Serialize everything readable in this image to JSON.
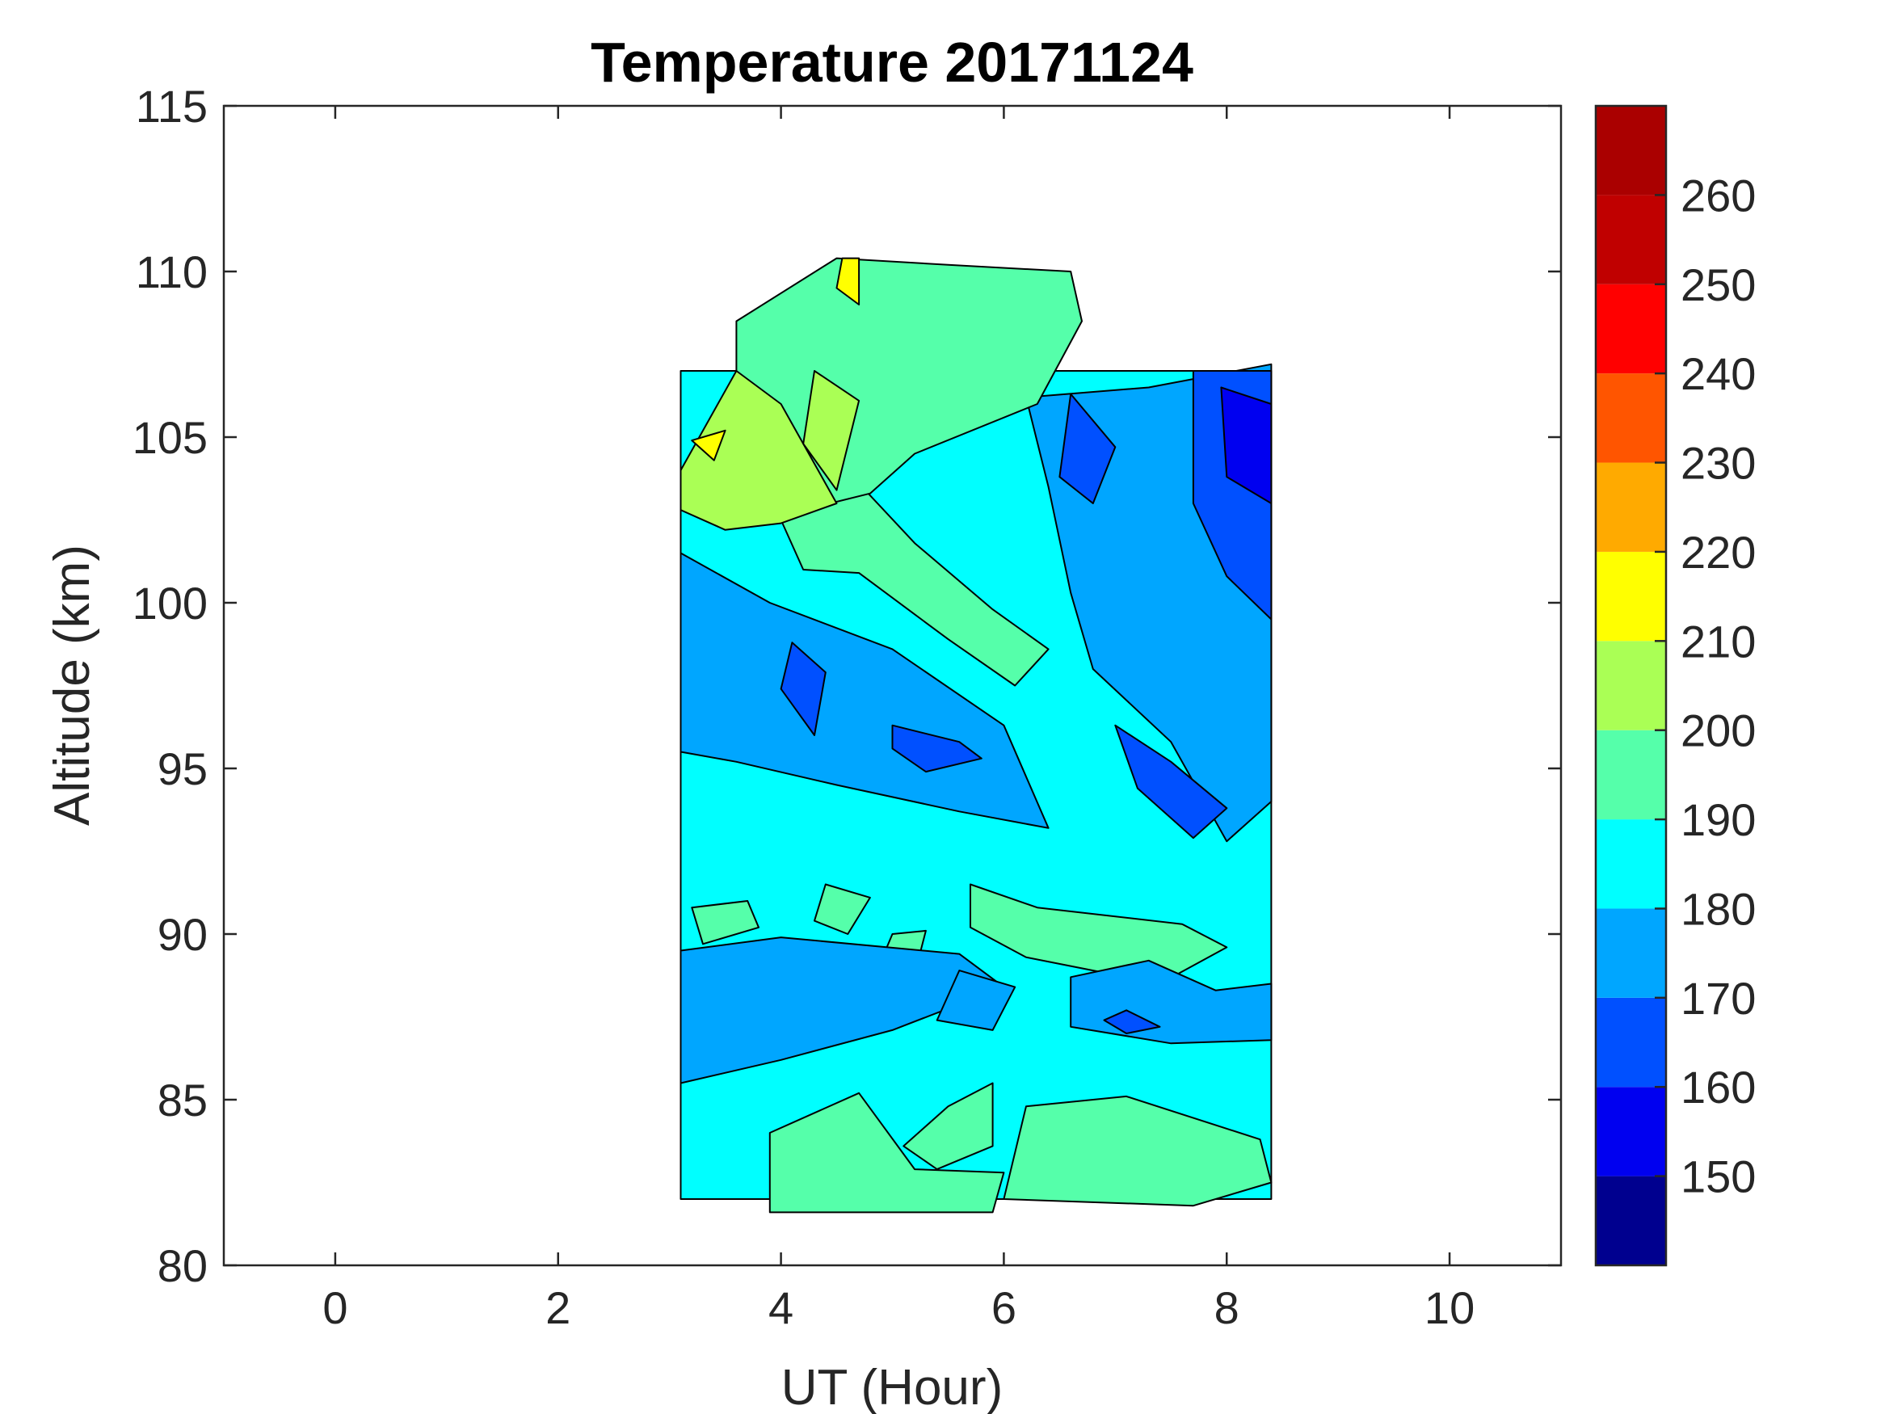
{
  "chart_data": {
    "type": "heatmap",
    "title": "Temperature 20171124",
    "xlabel": "UT (Hour)",
    "ylabel": "Altitude (km)",
    "xlim": [
      -1,
      11
    ],
    "ylim": [
      80,
      115
    ],
    "xticks": [
      0,
      2,
      4,
      6,
      8,
      10
    ],
    "yticks": [
      80,
      85,
      90,
      95,
      100,
      105,
      110,
      115
    ],
    "grid": false,
    "colorbar": {
      "range": [
        140,
        270
      ],
      "levels": [
        140,
        150,
        160,
        170,
        180,
        190,
        200,
        210,
        220,
        230,
        240,
        250,
        260,
        270
      ],
      "colors": [
        "#00008f",
        "#0000f0",
        "#0050ff",
        "#00a6ff",
        "#00ffff",
        "#55ffaa",
        "#aaff55",
        "#ffff00",
        "#ffaa00",
        "#ff5500",
        "#ff0000",
        "#c00000",
        "#aa0000"
      ],
      "ticks": [
        150,
        160,
        170,
        180,
        190,
        200,
        210,
        220,
        230,
        240,
        250,
        260
      ]
    },
    "data_coverage": {
      "x": [
        3.1,
        8.4
      ],
      "y": [
        80.5,
        110.5
      ]
    },
    "regions": [
      {
        "value": 185,
        "polygon": [
          [
            3.1,
            82
          ],
          [
            8.4,
            82
          ],
          [
            8.4,
            107
          ],
          [
            3.1,
            107
          ]
        ]
      },
      {
        "value": 195,
        "polygon": [
          [
            3.9,
            81.6
          ],
          [
            5.9,
            81.6
          ],
          [
            6.0,
            82.8
          ],
          [
            5.2,
            82.9
          ],
          [
            4.7,
            85.2
          ],
          [
            3.9,
            84.0
          ]
        ]
      },
      {
        "value": 195,
        "polygon": [
          [
            6.0,
            82.0
          ],
          [
            7.7,
            81.8
          ],
          [
            8.4,
            82.5
          ],
          [
            8.3,
            83.8
          ],
          [
            7.1,
            85.1
          ],
          [
            6.2,
            84.8
          ]
        ]
      },
      {
        "value": 195,
        "polygon": [
          [
            5.5,
            84.8
          ],
          [
            5.9,
            85.5
          ],
          [
            5.9,
            83.6
          ],
          [
            5.4,
            82.9
          ],
          [
            5.1,
            83.6
          ]
        ]
      },
      {
        "value": 195,
        "polygon": [
          [
            5.7,
            91.5
          ],
          [
            6.3,
            90.8
          ],
          [
            7.6,
            90.3
          ],
          [
            8.0,
            89.6
          ],
          [
            7.4,
            88.5
          ],
          [
            6.2,
            89.3
          ],
          [
            5.7,
            90.2
          ]
        ]
      },
      {
        "value": 195,
        "polygon": [
          [
            4.4,
            91.5
          ],
          [
            4.8,
            91.1
          ],
          [
            4.6,
            90.0
          ],
          [
            4.3,
            90.4
          ]
        ]
      },
      {
        "value": 195,
        "polygon": [
          [
            5.0,
            90.0
          ],
          [
            5.3,
            90.1
          ],
          [
            5.2,
            88.8
          ],
          [
            4.9,
            89.2
          ]
        ]
      },
      {
        "value": 195,
        "polygon": [
          [
            3.2,
            90.8
          ],
          [
            3.7,
            91.0
          ],
          [
            3.8,
            90.2
          ],
          [
            3.3,
            89.7
          ]
        ]
      },
      {
        "value": 175,
        "polygon": [
          [
            3.1,
            89.5
          ],
          [
            4.0,
            89.9
          ],
          [
            5.6,
            89.4
          ],
          [
            6.0,
            88.4
          ],
          [
            5.0,
            87.1
          ],
          [
            4.0,
            86.2
          ],
          [
            3.1,
            85.5
          ]
        ]
      },
      {
        "value": 175,
        "polygon": [
          [
            6.6,
            88.7
          ],
          [
            7.3,
            89.2
          ],
          [
            7.9,
            88.3
          ],
          [
            8.4,
            88.5
          ],
          [
            8.4,
            86.8
          ],
          [
            7.5,
            86.7
          ],
          [
            6.6,
            87.2
          ]
        ]
      },
      {
        "value": 175,
        "polygon": [
          [
            5.6,
            88.9
          ],
          [
            6.1,
            88.4
          ],
          [
            5.9,
            87.1
          ],
          [
            5.4,
            87.4
          ]
        ]
      },
      {
        "value": 165,
        "polygon": [
          [
            7.1,
            87.7
          ],
          [
            7.4,
            87.2
          ],
          [
            7.1,
            87.0
          ],
          [
            6.9,
            87.4
          ]
        ]
      },
      {
        "value": 175,
        "polygon": [
          [
            3.1,
            101.5
          ],
          [
            3.9,
            100.0
          ],
          [
            5.0,
            98.6
          ],
          [
            6.0,
            96.3
          ],
          [
            6.4,
            93.2
          ],
          [
            5.6,
            93.7
          ],
          [
            4.5,
            94.5
          ],
          [
            3.6,
            95.2
          ],
          [
            3.1,
            95.5
          ]
        ]
      },
      {
        "value": 175,
        "polygon": [
          [
            6.2,
            106.2
          ],
          [
            7.3,
            106.5
          ],
          [
            8.4,
            107.2
          ],
          [
            8.4,
            94.0
          ],
          [
            8.0,
            92.8
          ],
          [
            7.5,
            95.8
          ],
          [
            6.8,
            98.0
          ],
          [
            6.6,
            100.3
          ],
          [
            6.4,
            103.5
          ]
        ]
      },
      {
        "value": 165,
        "polygon": [
          [
            4.1,
            98.8
          ],
          [
            4.4,
            97.9
          ],
          [
            4.3,
            96.0
          ],
          [
            4.0,
            97.4
          ]
        ]
      },
      {
        "value": 165,
        "polygon": [
          [
            5.0,
            96.3
          ],
          [
            5.6,
            95.8
          ],
          [
            5.8,
            95.3
          ],
          [
            5.3,
            94.9
          ],
          [
            5.0,
            95.6
          ]
        ]
      },
      {
        "value": 165,
        "polygon": [
          [
            7.0,
            96.3
          ],
          [
            7.5,
            95.2
          ],
          [
            8.0,
            93.8
          ],
          [
            7.7,
            92.9
          ],
          [
            7.2,
            94.4
          ]
        ]
      },
      {
        "value": 165,
        "polygon": [
          [
            6.6,
            106.3
          ],
          [
            7.0,
            104.7
          ],
          [
            6.8,
            103.0
          ],
          [
            6.5,
            103.8
          ]
        ]
      },
      {
        "value": 165,
        "polygon": [
          [
            7.7,
            107.0
          ],
          [
            8.4,
            107.0
          ],
          [
            8.4,
            99.5
          ],
          [
            8.0,
            100.8
          ],
          [
            7.7,
            103.0
          ]
        ]
      },
      {
        "value": 155,
        "polygon": [
          [
            7.95,
            106.5
          ],
          [
            8.4,
            106.0
          ],
          [
            8.4,
            103.0
          ],
          [
            8.0,
            103.8
          ]
        ]
      },
      {
        "value": 195,
        "polygon": [
          [
            4.0,
            102.5
          ],
          [
            4.7,
            103.6
          ],
          [
            5.2,
            101.8
          ],
          [
            5.9,
            99.8
          ],
          [
            6.4,
            98.6
          ],
          [
            6.1,
            97.5
          ],
          [
            5.5,
            98.9
          ],
          [
            4.7,
            100.9
          ],
          [
            4.2,
            101.0
          ]
        ]
      },
      {
        "value": 195,
        "polygon": [
          [
            3.6,
            108.5
          ],
          [
            4.5,
            110.4
          ],
          [
            5.5,
            110.2
          ],
          [
            6.6,
            110.0
          ],
          [
            6.7,
            108.5
          ],
          [
            6.3,
            106.0
          ],
          [
            5.2,
            104.5
          ],
          [
            4.8,
            103.3
          ],
          [
            4.2,
            102.8
          ],
          [
            3.6,
            104.0
          ]
        ]
      },
      {
        "value": 205,
        "polygon": [
          [
            3.1,
            104.0
          ],
          [
            3.6,
            107.0
          ],
          [
            4.0,
            106.0
          ],
          [
            4.5,
            103.0
          ],
          [
            4.0,
            102.4
          ],
          [
            3.5,
            102.2
          ],
          [
            3.1,
            102.8
          ]
        ]
      },
      {
        "value": 205,
        "polygon": [
          [
            4.3,
            107.0
          ],
          [
            4.7,
            106.1
          ],
          [
            4.5,
            103.4
          ],
          [
            4.2,
            104.8
          ]
        ]
      },
      {
        "value": 215,
        "polygon": [
          [
            3.2,
            104.9
          ],
          [
            3.5,
            105.2
          ],
          [
            3.4,
            104.3
          ]
        ]
      },
      {
        "value": 215,
        "polygon": [
          [
            4.55,
            110.4
          ],
          [
            4.7,
            110.4
          ],
          [
            4.7,
            109.0
          ],
          [
            4.5,
            109.5
          ]
        ]
      }
    ]
  }
}
